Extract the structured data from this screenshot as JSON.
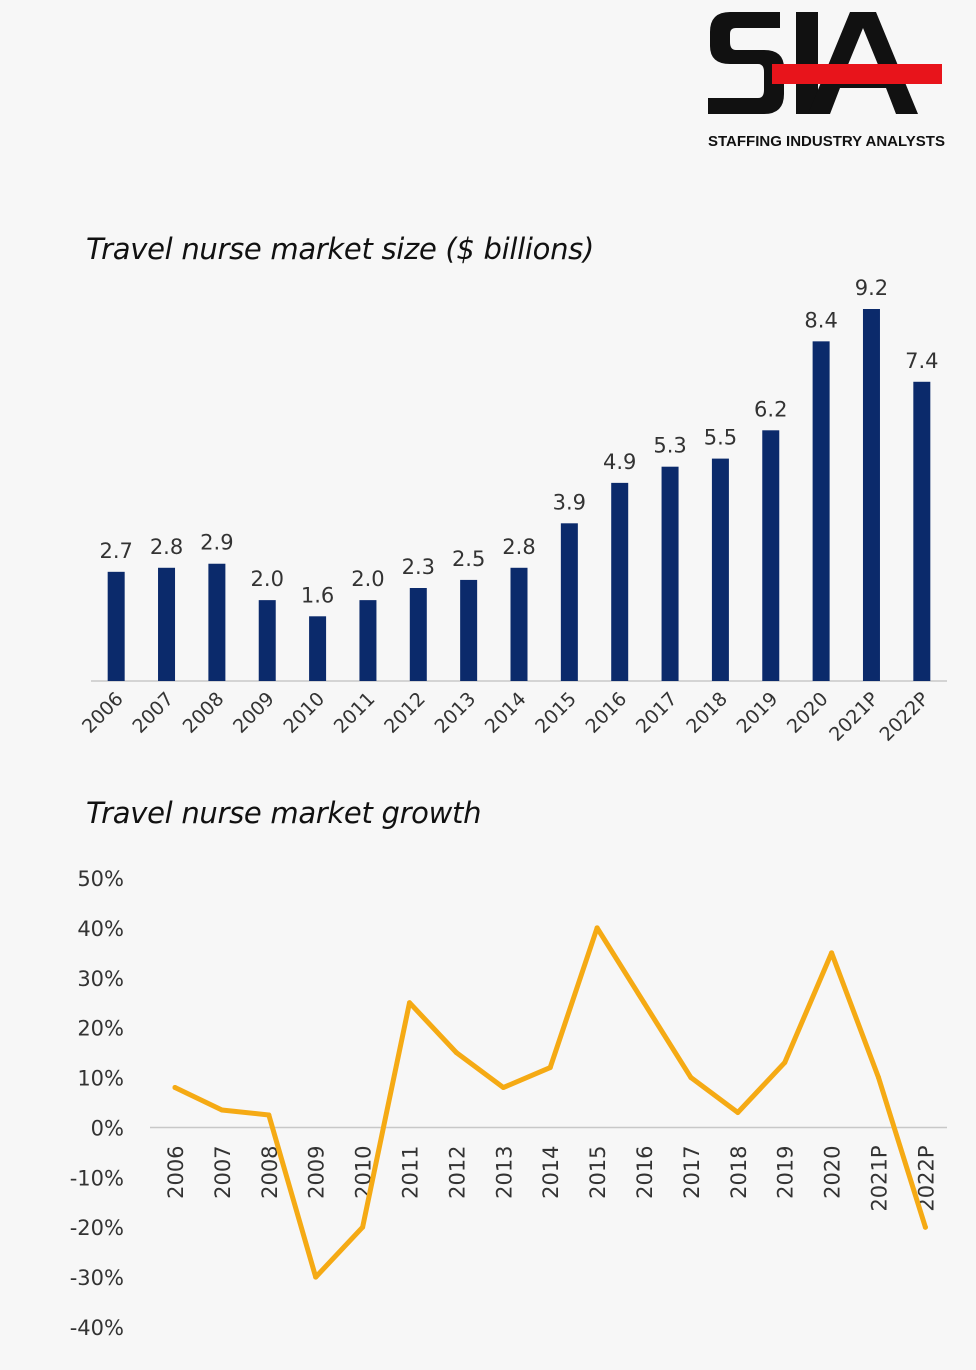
{
  "logo": {
    "letters": "SIA",
    "tagline": "STAFFING INDUSTRY ANALYSTS",
    "letter_color": "#111111",
    "bar_color": "#e8141b"
  },
  "chart_data": [
    {
      "type": "bar",
      "title": "Travel nurse market size ($ billions)",
      "categories": [
        "2006",
        "2007",
        "2008",
        "2009",
        "2010",
        "2011",
        "2012",
        "2013",
        "2014",
        "2015",
        "2016",
        "2017",
        "2018",
        "2019",
        "2020",
        "2021P",
        "2022P"
      ],
      "values": [
        2.7,
        2.8,
        2.9,
        2.0,
        1.6,
        2.0,
        2.3,
        2.5,
        2.8,
        3.9,
        4.9,
        5.3,
        5.5,
        6.2,
        8.4,
        9.2,
        7.4
      ],
      "data_labels": [
        "2.7",
        "2.8",
        "2.9",
        "2.0",
        "1.6",
        "2.0",
        "2.3",
        "2.5",
        "2.8",
        "3.9",
        "4.9",
        "5.3",
        "5.5",
        "6.2",
        "8.4",
        "9.2",
        "7.4"
      ],
      "color": "#0b2a6b",
      "ylim": [
        0,
        9.2
      ],
      "grid": false,
      "legend": "none"
    },
    {
      "type": "line",
      "title": "Travel nurse market growth",
      "categories": [
        "2006",
        "2007",
        "2008",
        "2009",
        "2010",
        "2011",
        "2012",
        "2013",
        "2014",
        "2015",
        "2016",
        "2017",
        "2018",
        "2019",
        "2020",
        "2021P",
        "2022P"
      ],
      "values": [
        8,
        3.5,
        2.5,
        -30,
        -20,
        25,
        15,
        8,
        12,
        40,
        25,
        10,
        3,
        13,
        35,
        10,
        -20
      ],
      "y_unit": "percent",
      "y_ticks": [
        "50%",
        "40%",
        "30%",
        "20%",
        "10%",
        "0%",
        "-10%",
        "-20%",
        "-30%",
        "-40%"
      ],
      "ylim": [
        -40,
        50
      ],
      "color": "#f5aa14",
      "grid": false,
      "legend": "none"
    }
  ]
}
